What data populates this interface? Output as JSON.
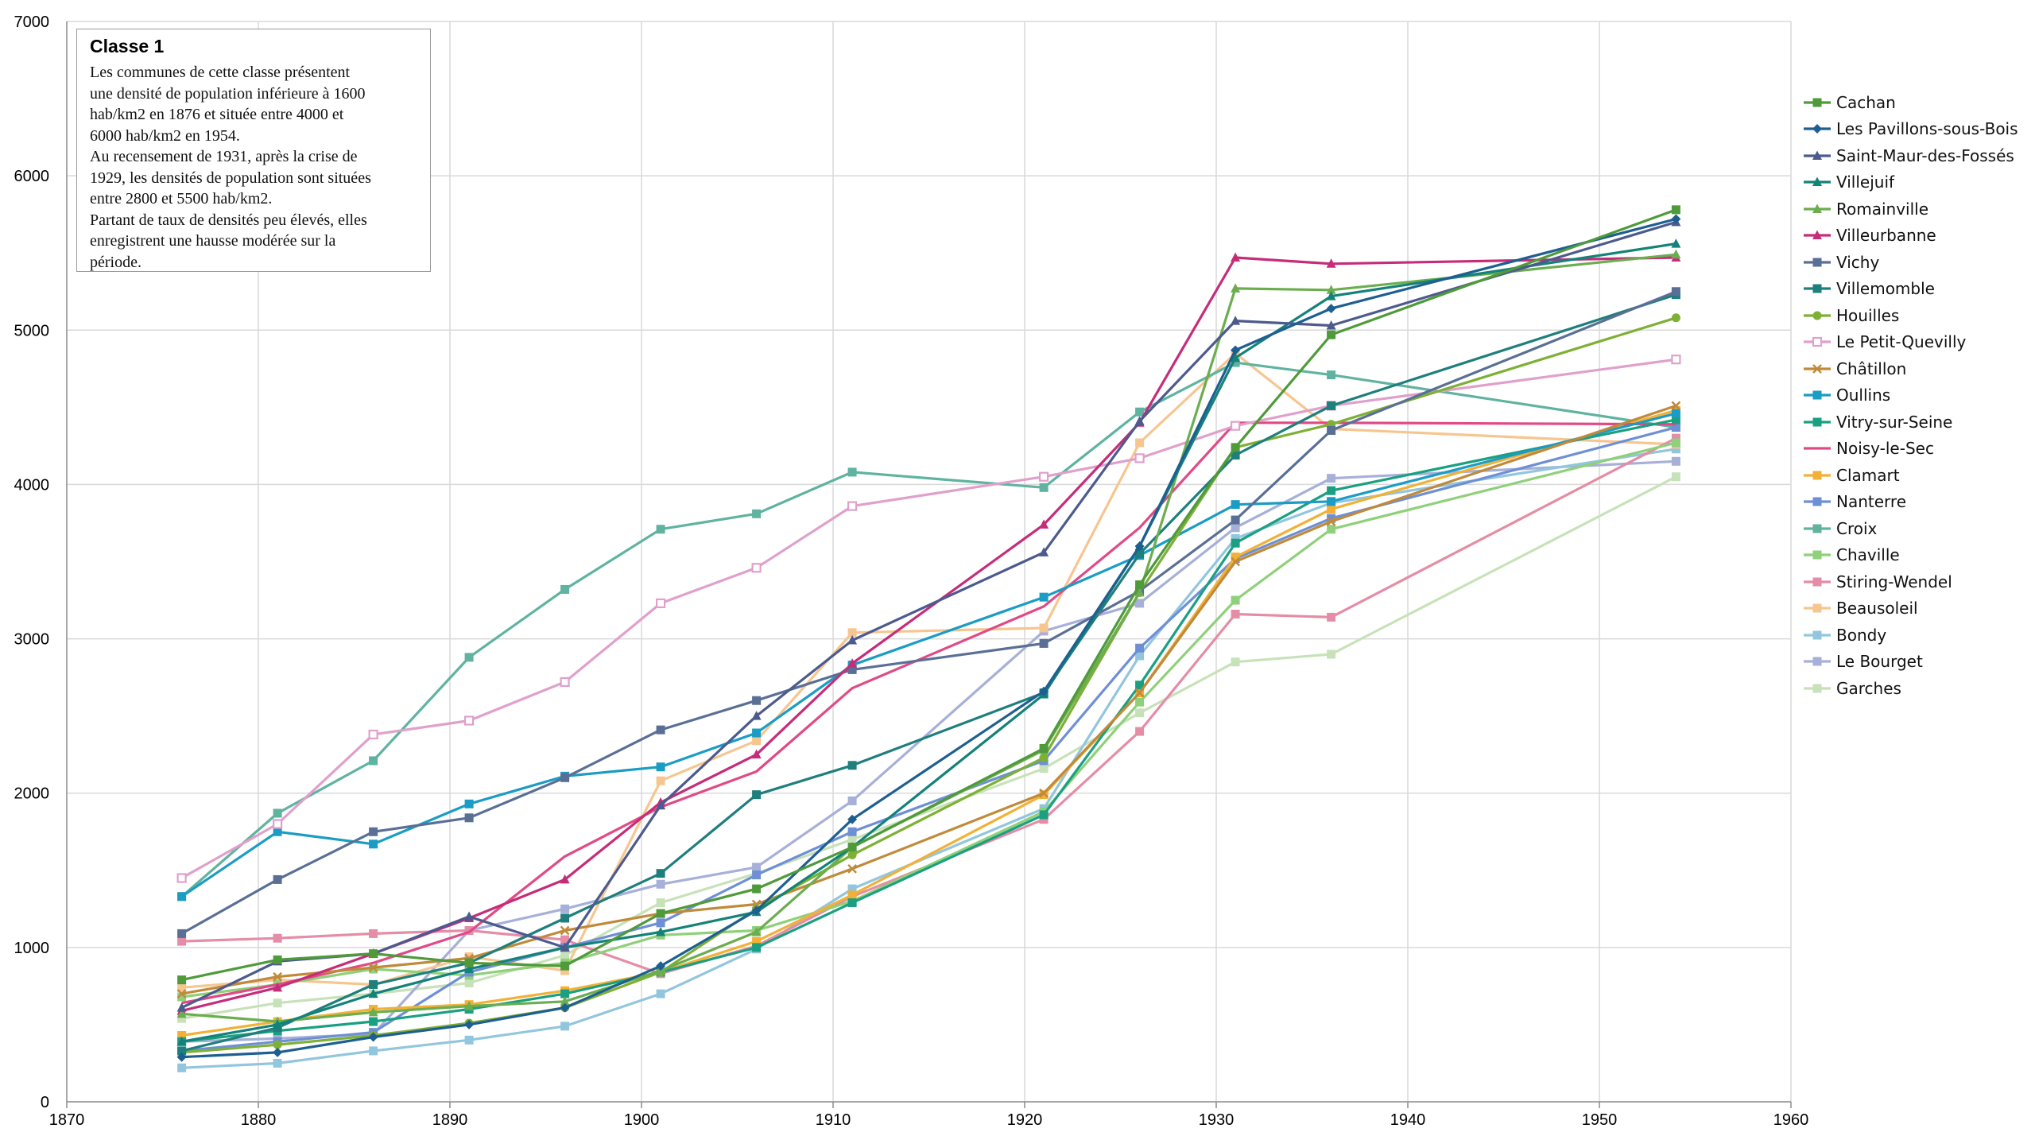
{
  "annotation": {
    "title": "Classe 1",
    "lines": [
      "Les communes de cette classe présentent",
      "une densité de population inférieure à 1600",
      "hab/km2 en 1876 et située entre 4000 et",
      "6000 hab/km2 en 1954.",
      "Au recensement de 1931, après la crise de",
      "1929, les densités de population sont situées",
      "entre 2800 et 5500 hab/km2.",
      "Partant de taux de densités peu élevés, elles",
      "enregistrent une hausse modérée sur la",
      "période."
    ]
  },
  "chart_data": {
    "type": "line",
    "title": "",
    "xlabel": "",
    "ylabel": "",
    "xlim": [
      1870,
      1960
    ],
    "ylim": [
      0,
      7000
    ],
    "x_ticks": [
      1870,
      1880,
      1890,
      1900,
      1910,
      1920,
      1930,
      1940,
      1950,
      1960
    ],
    "y_ticks": [
      0,
      1000,
      2000,
      3000,
      4000,
      5000,
      6000,
      7000
    ],
    "grid": true,
    "legend_position": "right",
    "x": [
      1876,
      1881,
      1886,
      1891,
      1896,
      1901,
      1906,
      1911,
      1921,
      1926,
      1931,
      1936,
      1954
    ],
    "series": [
      {
        "name": "Cachan",
        "color": "#4f9a3a",
        "marker": "square",
        "values": [
          790,
          920,
          960,
          900,
          880,
          1220,
          1380,
          1650,
          2290,
          3350,
          4240,
          4970,
          5780
        ]
      },
      {
        "name": "Les Pavillons-sous-Bois",
        "color": "#1e5f91",
        "marker": "diamond",
        "values": [
          290,
          320,
          420,
          500,
          610,
          880,
          1240,
          1830,
          2660,
          3600,
          4870,
          5140,
          5720
        ]
      },
      {
        "name": "Saint-Maur-des-Fossés",
        "color": "#4c5a8e",
        "marker": "triangle",
        "values": [
          610,
          910,
          960,
          1200,
          1000,
          1920,
          2500,
          2990,
          3560,
          4410,
          5060,
          5030,
          5700
        ]
      },
      {
        "name": "Villejuif",
        "color": "#138278",
        "marker": "triangle",
        "values": [
          390,
          500,
          700,
          860,
          1000,
          1100,
          1230,
          1650,
          2640,
          3600,
          4820,
          5220,
          5560
        ]
      },
      {
        "name": "Romainville",
        "color": "#6cad50",
        "marker": "triangle",
        "values": [
          570,
          520,
          580,
          620,
          650,
          850,
          1100,
          1650,
          2280,
          3300,
          5270,
          5260,
          5490
        ]
      },
      {
        "name": "Villeurbanne",
        "color": "#c52d7a",
        "marker": "triangle",
        "values": [
          590,
          740,
          960,
          1190,
          1440,
          1940,
          2250,
          2840,
          3740,
          4400,
          5470,
          5430,
          5470
        ]
      },
      {
        "name": "Vichy",
        "color": "#5a6f95",
        "marker": "square",
        "values": [
          1090,
          1440,
          1750,
          1840,
          2100,
          2410,
          2600,
          2800,
          2970,
          3310,
          3770,
          4350,
          5250
        ]
      },
      {
        "name": "Villemomble",
        "color": "#1e7f7c",
        "marker": "square",
        "values": [
          330,
          480,
          760,
          900,
          1190,
          1480,
          1990,
          2180,
          2650,
          3550,
          4190,
          4510,
          5230
        ]
      },
      {
        "name": "Houilles",
        "color": "#7db034",
        "marker": "circle",
        "values": [
          320,
          370,
          430,
          510,
          610,
          840,
          1250,
          1600,
          2230,
          3300,
          4240,
          4390,
          5080
        ]
      },
      {
        "name": "Le Petit-Quevilly",
        "color": "#e0a0cc",
        "marker": "open-square",
        "values": [
          1450,
          1800,
          2380,
          2470,
          2720,
          3230,
          3460,
          3860,
          4050,
          4170,
          4380,
          4510,
          4810
        ]
      },
      {
        "name": "Châtillon",
        "color": "#c08a3a",
        "marker": "x",
        "values": [
          700,
          810,
          870,
          930,
          1110,
          1220,
          1280,
          1510,
          2000,
          2650,
          3500,
          3760,
          4510
        ]
      },
      {
        "name": "Oullins",
        "color": "#1a9cc4",
        "marker": "square",
        "values": [
          1330,
          1750,
          1670,
          1930,
          2110,
          2170,
          2390,
          2830,
          3270,
          3540,
          3870,
          3890,
          4460
        ]
      },
      {
        "name": "Vitry-sur-Seine",
        "color": "#1aa081",
        "marker": "square",
        "values": [
          390,
          460,
          520,
          600,
          700,
          840,
          1000,
          1290,
          1860,
          2700,
          3620,
          3960,
          4420
        ]
      },
      {
        "name": "Noisy-le-Sec",
        "color": "#e04a86",
        "marker": "none",
        "values": [
          640,
          760,
          900,
          1100,
          1590,
          1910,
          2140,
          2680,
          3210,
          3720,
          4400,
          4400,
          4390
        ]
      },
      {
        "name": "Clamart",
        "color": "#f2b136",
        "marker": "square",
        "values": [
          430,
          520,
          600,
          630,
          720,
          840,
          1040,
          1340,
          1990,
          2650,
          3530,
          3840,
          4480
        ]
      },
      {
        "name": "Nanterre",
        "color": "#6e8fd6",
        "marker": "square",
        "values": [
          330,
          390,
          450,
          840,
          1000,
          1160,
          1470,
          1750,
          2210,
          2940,
          3520,
          3780,
          4370
        ]
      },
      {
        "name": "Croix",
        "color": "#5fb3a0",
        "marker": "square",
        "values": [
          1330,
          1870,
          2210,
          2880,
          3320,
          3710,
          3810,
          4080,
          3980,
          4470,
          4790,
          4710,
          4370
        ]
      },
      {
        "name": "Chaville",
        "color": "#8fd07a",
        "marker": "square",
        "values": [
          680,
          760,
          860,
          820,
          900,
          1080,
          1110,
          1300,
          1880,
          2590,
          3250,
          3710,
          4270
        ]
      },
      {
        "name": "Stiring-Wendel",
        "color": "#e58ca6",
        "marker": "square",
        "values": [
          1040,
          1060,
          1090,
          1110,
          1050,
          830,
          1010,
          1330,
          1830,
          2400,
          3160,
          3140,
          4300
        ]
      },
      {
        "name": "Beausoleil",
        "color": "#f6c690",
        "marker": "square",
        "values": [
          740,
          790,
          760,
          940,
          850,
          2080,
          2340,
          3040,
          3070,
          4270,
          4850,
          4360,
          4260
        ]
      },
      {
        "name": "Bondy",
        "color": "#92c6de",
        "marker": "square",
        "values": [
          220,
          250,
          330,
          400,
          490,
          700,
          990,
          1380,
          1900,
          2890,
          3650,
          3880,
          4230
        ]
      },
      {
        "name": "Le Bourget",
        "color": "#a6b0d8",
        "marker": "square",
        "values": [
          390,
          410,
          440,
          1110,
          1250,
          1410,
          1520,
          1950,
          3050,
          3230,
          3720,
          4040,
          4150
        ]
      },
      {
        "name": "Garches",
        "color": "#c7e2b8",
        "marker": "square",
        "values": [
          540,
          640,
          700,
          770,
          950,
          1290,
          1480,
          1700,
          2160,
          2520,
          2850,
          2900,
          4050
        ]
      }
    ]
  }
}
